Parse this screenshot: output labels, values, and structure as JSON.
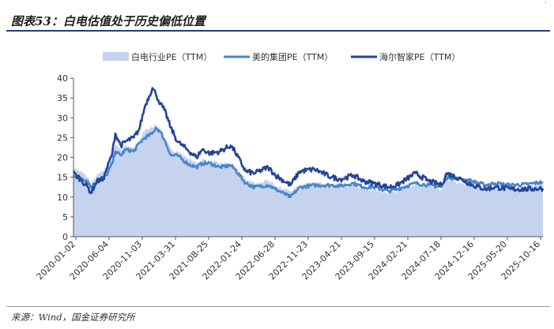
{
  "header": {
    "title": "图表53：白电估值处于历史偏低位置",
    "corner_mark": "'"
  },
  "footer": {
    "source": "来源：Wind，国金证券研究所"
  },
  "colors": {
    "industry_area": "#c5d3ef",
    "midea_line": "#4a86c8",
    "haier_line": "#25449a",
    "title_rule": "#1f3d7a"
  },
  "chart_data": {
    "type": "line",
    "title": "白电估值处于历史偏低位置",
    "xlabel": "",
    "ylabel": "",
    "ylim": [
      0,
      40
    ],
    "yticks": [
      0,
      5,
      10,
      15,
      20,
      25,
      30,
      35,
      40
    ],
    "grid": false,
    "legend_position": "top",
    "x_start": "2020-01-02",
    "x_end": "2025-12-31",
    "xtick_labels": [
      "2020-01-02",
      "2020-06-04",
      "2020-11-03",
      "2021-03-31",
      "2021-08-25",
      "2022-01-24",
      "2022-06-28",
      "2022-11-23",
      "2023-04-21",
      "2023-09-15",
      "2024-02-21",
      "2024-07-18",
      "2024-12-16",
      "2025-05-20",
      "2025-10-16"
    ],
    "series": [
      {
        "name": "白电行业PE（TTM）",
        "kind": "area",
        "points": [
          [
            "2020-01-02",
            17.5
          ],
          [
            "2020-02-03",
            16.5
          ],
          [
            "2020-03-09",
            15.0
          ],
          [
            "2020-03-23",
            13.0
          ],
          [
            "2020-04-20",
            15.5
          ],
          [
            "2020-05-20",
            16.5
          ],
          [
            "2020-06-04",
            18.0
          ],
          [
            "2020-07-01",
            21.0
          ],
          [
            "2020-07-15",
            23.5
          ],
          [
            "2020-08-10",
            22.0
          ],
          [
            "2020-09-01",
            23.0
          ],
          [
            "2020-10-09",
            22.5
          ],
          [
            "2020-11-03",
            24.0
          ],
          [
            "2020-12-01",
            27.0
          ],
          [
            "2021-01-04",
            27.5
          ],
          [
            "2021-01-20",
            28.5
          ],
          [
            "2021-02-10",
            27.0
          ],
          [
            "2021-03-01",
            25.0
          ],
          [
            "2021-03-31",
            22.0
          ],
          [
            "2021-05-01",
            21.5
          ],
          [
            "2021-06-15",
            20.0
          ],
          [
            "2021-07-28",
            18.5
          ],
          [
            "2021-08-25",
            19.5
          ],
          [
            "2021-10-01",
            19.0
          ],
          [
            "2021-11-15",
            18.5
          ],
          [
            "2022-01-04",
            18.5
          ],
          [
            "2022-01-24",
            17.5
          ],
          [
            "2022-03-15",
            14.5
          ],
          [
            "2022-04-26",
            13.5
          ],
          [
            "2022-06-28",
            14.0
          ],
          [
            "2022-08-01",
            13.0
          ],
          [
            "2022-10-10",
            11.5
          ],
          [
            "2022-11-23",
            13.0
          ],
          [
            "2023-01-30",
            13.5
          ],
          [
            "2023-04-21",
            13.0
          ],
          [
            "2023-06-01",
            12.5
          ],
          [
            "2023-07-31",
            13.0
          ],
          [
            "2023-09-15",
            12.0
          ],
          [
            "2023-11-01",
            12.0
          ],
          [
            "2024-01-10",
            11.0
          ],
          [
            "2024-02-21",
            11.5
          ],
          [
            "2024-05-15",
            13.0
          ],
          [
            "2024-07-18",
            13.0
          ],
          [
            "2024-09-13",
            12.0
          ],
          [
            "2024-10-08",
            14.0
          ],
          [
            "2024-12-16",
            13.5
          ],
          [
            "2025-02-05",
            13.0
          ],
          [
            "2025-04-08",
            12.5
          ],
          [
            "2025-05-20",
            12.8
          ],
          [
            "2025-08-01",
            12.6
          ],
          [
            "2025-10-16",
            12.7
          ],
          [
            "2025-12-31",
            13.2
          ]
        ]
      },
      {
        "name": "美的集团PE（TTM）",
        "kind": "line",
        "points": [
          [
            "2020-01-02",
            15.5
          ],
          [
            "2020-02-03",
            15.0
          ],
          [
            "2020-03-09",
            14.0
          ],
          [
            "2020-03-23",
            12.5
          ],
          [
            "2020-04-20",
            14.0
          ],
          [
            "2020-05-20",
            15.0
          ],
          [
            "2020-06-04",
            15.5
          ],
          [
            "2020-07-01",
            18.5
          ],
          [
            "2020-07-15",
            21.5
          ],
          [
            "2020-08-10",
            20.5
          ],
          [
            "2020-09-01",
            22.0
          ],
          [
            "2020-10-09",
            21.5
          ],
          [
            "2020-11-03",
            23.5
          ],
          [
            "2020-12-01",
            25.0
          ],
          [
            "2021-01-04",
            26.0
          ],
          [
            "2021-01-20",
            27.5
          ],
          [
            "2021-02-10",
            26.5
          ],
          [
            "2021-03-01",
            24.5
          ],
          [
            "2021-03-31",
            20.5
          ],
          [
            "2021-05-01",
            20.5
          ],
          [
            "2021-06-15",
            18.5
          ],
          [
            "2021-07-28",
            17.5
          ],
          [
            "2021-08-25",
            18.5
          ],
          [
            "2021-10-01",
            18.5
          ],
          [
            "2021-11-15",
            17.5
          ],
          [
            "2022-01-04",
            18.0
          ],
          [
            "2022-01-24",
            17.0
          ],
          [
            "2022-03-15",
            13.5
          ],
          [
            "2022-04-26",
            12.5
          ],
          [
            "2022-06-28",
            13.0
          ],
          [
            "2022-08-01",
            12.0
          ],
          [
            "2022-10-10",
            10.0
          ],
          [
            "2022-11-23",
            12.5
          ],
          [
            "2023-01-30",
            13.0
          ],
          [
            "2023-04-21",
            13.0
          ],
          [
            "2023-06-01",
            12.8
          ],
          [
            "2023-07-31",
            13.5
          ],
          [
            "2023-09-15",
            12.5
          ],
          [
            "2023-11-01",
            12.5
          ],
          [
            "2024-01-10",
            11.5
          ],
          [
            "2024-02-21",
            12.0
          ],
          [
            "2024-05-15",
            13.5
          ],
          [
            "2024-07-18",
            13.0
          ],
          [
            "2024-09-13",
            12.5
          ],
          [
            "2024-10-08",
            15.0
          ],
          [
            "2024-12-16",
            14.5
          ],
          [
            "2025-02-05",
            14.0
          ],
          [
            "2025-04-08",
            13.0
          ],
          [
            "2025-05-20",
            13.5
          ],
          [
            "2025-08-01",
            13.0
          ],
          [
            "2025-10-16",
            13.2
          ],
          [
            "2025-12-31",
            13.8
          ]
        ]
      },
      {
        "name": "海尔智家PE（TTM）",
        "kind": "line",
        "points": [
          [
            "2020-01-02",
            16.0
          ],
          [
            "2020-02-03",
            14.5
          ],
          [
            "2020-03-09",
            12.5
          ],
          [
            "2020-03-23",
            11.0
          ],
          [
            "2020-04-20",
            14.0
          ],
          [
            "2020-05-20",
            14.5
          ],
          [
            "2020-06-04",
            17.0
          ],
          [
            "2020-07-01",
            21.0
          ],
          [
            "2020-07-15",
            26.0
          ],
          [
            "2020-08-10",
            23.0
          ],
          [
            "2020-09-01",
            24.0
          ],
          [
            "2020-10-09",
            25.0
          ],
          [
            "2020-11-03",
            27.0
          ],
          [
            "2020-12-01",
            33.0
          ],
          [
            "2021-01-04",
            37.5
          ],
          [
            "2021-01-20",
            36.0
          ],
          [
            "2021-02-10",
            33.5
          ],
          [
            "2021-03-01",
            32.0
          ],
          [
            "2021-03-31",
            27.5
          ],
          [
            "2021-05-01",
            24.0
          ],
          [
            "2021-06-15",
            22.0
          ],
          [
            "2021-07-28",
            20.0
          ],
          [
            "2021-08-25",
            22.0
          ],
          [
            "2021-10-01",
            21.0
          ],
          [
            "2021-11-15",
            21.5
          ],
          [
            "2022-01-04",
            23.0
          ],
          [
            "2022-01-24",
            21.5
          ],
          [
            "2022-03-15",
            16.5
          ],
          [
            "2022-04-26",
            16.0
          ],
          [
            "2022-06-28",
            17.5
          ],
          [
            "2022-08-01",
            15.5
          ],
          [
            "2022-10-10",
            13.0
          ],
          [
            "2022-11-23",
            16.5
          ],
          [
            "2023-01-30",
            17.0
          ],
          [
            "2023-04-21",
            15.0
          ],
          [
            "2023-06-01",
            14.5
          ],
          [
            "2023-07-31",
            15.5
          ],
          [
            "2023-09-15",
            14.0
          ],
          [
            "2023-11-01",
            13.5
          ],
          [
            "2024-01-10",
            12.5
          ],
          [
            "2024-02-21",
            13.0
          ],
          [
            "2024-05-15",
            16.0
          ],
          [
            "2024-07-18",
            14.0
          ],
          [
            "2024-09-13",
            13.0
          ],
          [
            "2024-10-08",
            16.0
          ],
          [
            "2024-12-16",
            14.5
          ],
          [
            "2025-02-05",
            13.0
          ],
          [
            "2025-04-08",
            12.0
          ],
          [
            "2025-05-20",
            12.5
          ],
          [
            "2025-08-01",
            12.0
          ],
          [
            "2025-10-16",
            12.0
          ],
          [
            "2025-12-31",
            12.2
          ]
        ]
      }
    ]
  }
}
